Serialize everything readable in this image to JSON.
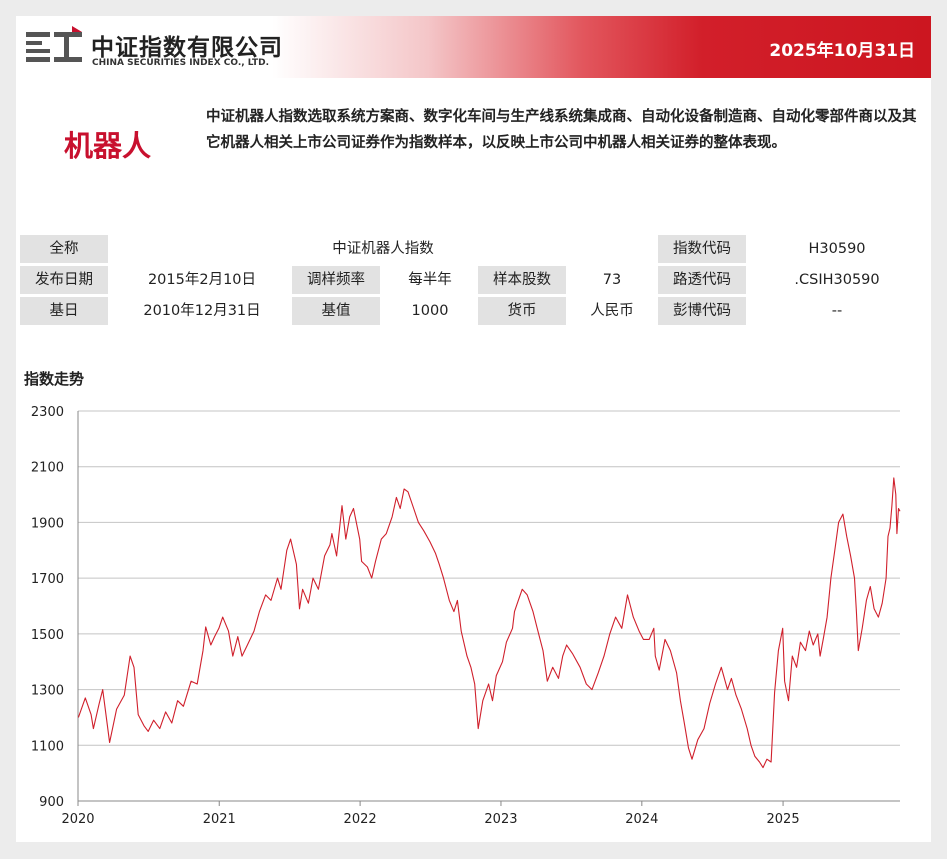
{
  "header": {
    "brand_cn": "中证指数有限公司",
    "brand_en": "CHINA SECURITIES INDEX CO., LTD.",
    "date": "2025年10月31日"
  },
  "index": {
    "name": "机器人",
    "description": "中证机器人指数选取系统方案商、数字化车间与生产线系统集成商、自动化设备制造商、自动化零部件商以及其它机器人相关上市公司证券作为指数样本，以反映上市公司中机器人相关证券的整体表现。"
  },
  "info": {
    "full_name_label": "全称",
    "full_name": "中证机器人指数",
    "code_label": "指数代码",
    "code": "H30590",
    "launch_label": "发布日期",
    "launch": "2015年2月10日",
    "rebalance_label": "调样频率",
    "rebalance": "每半年",
    "count_label": "样本股数",
    "count": "73",
    "reuters_label": "路透代码",
    "reuters": ".CSIH30590",
    "base_date_label": "基日",
    "base_date": "2010年12月31日",
    "base_value_label": "基值",
    "base_value": "1000",
    "currency_label": "货币",
    "currency": "人民币",
    "bloomberg_label": "彭博代码",
    "bloomberg": "--"
  },
  "section_title": "指数走势",
  "chart_data": {
    "type": "line",
    "title": "指数走势",
    "xlabel": "",
    "ylabel": "",
    "ylim": [
      900,
      2300
    ],
    "yticks": [
      900,
      1100,
      1300,
      1500,
      1700,
      1900,
      2100,
      2300
    ],
    "xticks": [
      "2020",
      "2021",
      "2022",
      "2023",
      "2024",
      "2025"
    ],
    "xlim": [
      "2020-01-01",
      "2025-10-31"
    ],
    "grid": true,
    "line_color": "#d0202c",
    "series": [
      {
        "name": "",
        "points": [
          [
            "2020-01-02",
            1200
          ],
          [
            "2020-01-20",
            1270
          ],
          [
            "2020-02-04",
            1210
          ],
          [
            "2020-02-10",
            1160
          ],
          [
            "2020-02-25",
            1250
          ],
          [
            "2020-03-05",
            1300
          ],
          [
            "2020-03-23",
            1110
          ],
          [
            "2020-04-10",
            1230
          ],
          [
            "2020-04-30",
            1280
          ],
          [
            "2020-05-15",
            1420
          ],
          [
            "2020-05-25",
            1380
          ],
          [
            "2020-06-05",
            1210
          ],
          [
            "2020-06-20",
            1170
          ],
          [
            "2020-07-01",
            1150
          ],
          [
            "2020-07-15",
            1190
          ],
          [
            "2020-07-31",
            1160
          ],
          [
            "2020-08-15",
            1220
          ],
          [
            "2020-08-31",
            1180
          ],
          [
            "2020-09-15",
            1260
          ],
          [
            "2020-09-30",
            1240
          ],
          [
            "2020-10-20",
            1330
          ],
          [
            "2020-11-05",
            1320
          ],
          [
            "2020-11-20",
            1440
          ],
          [
            "2020-11-27",
            1525
          ],
          [
            "2020-12-10",
            1460
          ],
          [
            "2020-12-20",
            1490
          ],
          [
            "2020-12-31",
            1520
          ],
          [
            "2021-01-10",
            1560
          ],
          [
            "2021-01-25",
            1510
          ],
          [
            "2021-02-05",
            1420
          ],
          [
            "2021-02-18",
            1490
          ],
          [
            "2021-03-01",
            1420
          ],
          [
            "2021-03-15",
            1460
          ],
          [
            "2021-04-01",
            1510
          ],
          [
            "2021-04-15",
            1580
          ],
          [
            "2021-05-01",
            1640
          ],
          [
            "2021-05-15",
            1620
          ],
          [
            "2021-06-01",
            1700
          ],
          [
            "2021-06-10",
            1660
          ],
          [
            "2021-06-25",
            1800
          ],
          [
            "2021-07-05",
            1840
          ],
          [
            "2021-07-20",
            1750
          ],
          [
            "2021-07-28",
            1590
          ],
          [
            "2021-08-05",
            1660
          ],
          [
            "2021-08-20",
            1610
          ],
          [
            "2021-09-01",
            1700
          ],
          [
            "2021-09-15",
            1660
          ],
          [
            "2021-10-01",
            1780
          ],
          [
            "2021-10-15",
            1820
          ],
          [
            "2021-10-20",
            1860
          ],
          [
            "2021-11-01",
            1780
          ],
          [
            "2021-11-15",
            1960
          ],
          [
            "2021-11-25",
            1840
          ],
          [
            "2021-12-05",
            1920
          ],
          [
            "2021-12-15",
            1950
          ],
          [
            "2021-12-31",
            1840
          ],
          [
            "2022-01-05",
            1760
          ],
          [
            "2022-01-20",
            1740
          ],
          [
            "2022-01-31",
            1700
          ],
          [
            "2022-02-10",
            1760
          ],
          [
            "2022-02-25",
            1840
          ],
          [
            "2022-03-10",
            1860
          ],
          [
            "2022-03-25",
            1920
          ],
          [
            "2022-04-05",
            1990
          ],
          [
            "2022-04-15",
            1950
          ],
          [
            "2022-04-25",
            2020
          ],
          [
            "2022-05-05",
            2010
          ],
          [
            "2022-05-20",
            1950
          ],
          [
            "2022-06-01",
            1900
          ],
          [
            "2022-06-15",
            1870
          ],
          [
            "2022-07-01",
            1830
          ],
          [
            "2022-07-15",
            1790
          ],
          [
            "2022-07-25",
            1750
          ],
          [
            "2022-08-05",
            1700
          ],
          [
            "2022-08-20",
            1620
          ],
          [
            "2022-09-01",
            1580
          ],
          [
            "2022-09-10",
            1620
          ],
          [
            "2022-09-20",
            1510
          ],
          [
            "2022-10-05",
            1420
          ],
          [
            "2022-10-15",
            1380
          ],
          [
            "2022-10-25",
            1320
          ],
          [
            "2022-11-03",
            1160
          ],
          [
            "2022-11-15",
            1260
          ],
          [
            "2022-11-30",
            1320
          ],
          [
            "2022-12-10",
            1260
          ],
          [
            "2022-12-20",
            1350
          ],
          [
            "2023-01-05",
            1400
          ],
          [
            "2023-01-15",
            1470
          ],
          [
            "2023-01-31",
            1520
          ],
          [
            "2023-02-05",
            1580
          ],
          [
            "2023-02-15",
            1620
          ],
          [
            "2023-02-25",
            1660
          ],
          [
            "2023-03-10",
            1640
          ],
          [
            "2023-03-25",
            1580
          ],
          [
            "2023-04-05",
            1520
          ],
          [
            "2023-04-20",
            1440
          ],
          [
            "2023-05-01",
            1330
          ],
          [
            "2023-05-15",
            1380
          ],
          [
            "2023-05-30",
            1340
          ],
          [
            "2023-06-10",
            1420
          ],
          [
            "2023-06-20",
            1460
          ],
          [
            "2023-07-05",
            1430
          ],
          [
            "2023-07-25",
            1380
          ],
          [
            "2023-08-10",
            1320
          ],
          [
            "2023-08-25",
            1300
          ],
          [
            "2023-09-10",
            1360
          ],
          [
            "2023-09-25",
            1420
          ],
          [
            "2023-10-10",
            1500
          ],
          [
            "2023-10-25",
            1560
          ],
          [
            "2023-11-10",
            1520
          ],
          [
            "2023-11-20",
            1600
          ],
          [
            "2023-11-25",
            1640
          ],
          [
            "2023-12-10",
            1560
          ],
          [
            "2023-12-25",
            1510
          ],
          [
            "2024-01-05",
            1480
          ],
          [
            "2024-01-20",
            1480
          ],
          [
            "2024-02-01",
            1520
          ],
          [
            "2024-02-05",
            1420
          ],
          [
            "2024-02-15",
            1370
          ],
          [
            "2024-03-01",
            1480
          ],
          [
            "2024-03-15",
            1440
          ],
          [
            "2024-03-31",
            1360
          ],
          [
            "2024-04-10",
            1260
          ],
          [
            "2024-04-20",
            1180
          ],
          [
            "2024-05-01",
            1090
          ],
          [
            "2024-05-10",
            1050
          ],
          [
            "2024-05-25",
            1120
          ],
          [
            "2024-06-10",
            1160
          ],
          [
            "2024-06-25",
            1250
          ],
          [
            "2024-07-10",
            1320
          ],
          [
            "2024-07-25",
            1380
          ],
          [
            "2024-08-10",
            1300
          ],
          [
            "2024-08-20",
            1340
          ],
          [
            "2024-09-01",
            1280
          ],
          [
            "2024-09-15",
            1230
          ],
          [
            "2024-09-30",
            1160
          ],
          [
            "2024-10-10",
            1100
          ],
          [
            "2024-10-20",
            1060
          ],
          [
            "2024-11-01",
            1040
          ],
          [
            "2024-11-10",
            1020
          ],
          [
            "2024-11-20",
            1050
          ],
          [
            "2024-12-01",
            1040
          ],
          [
            "2024-12-10",
            1290
          ],
          [
            "2024-12-20",
            1440
          ],
          [
            "2024-12-31",
            1520
          ],
          [
            "2025-01-05",
            1330
          ],
          [
            "2025-01-15",
            1260
          ],
          [
            "2025-01-25",
            1420
          ],
          [
            "2025-02-05",
            1380
          ],
          [
            "2025-02-15",
            1470
          ],
          [
            "2025-02-28",
            1440
          ],
          [
            "2025-03-10",
            1510
          ],
          [
            "2025-03-20",
            1460
          ],
          [
            "2025-04-01",
            1500
          ],
          [
            "2025-04-07",
            1420
          ],
          [
            "2025-04-15",
            1480
          ],
          [
            "2025-04-25",
            1560
          ],
          [
            "2025-05-05",
            1700
          ],
          [
            "2025-05-15",
            1800
          ],
          [
            "2025-05-25",
            1900
          ],
          [
            "2025-06-05",
            1930
          ],
          [
            "2025-06-15",
            1850
          ],
          [
            "2025-06-25",
            1780
          ],
          [
            "2025-07-05",
            1700
          ],
          [
            "2025-07-10",
            1580
          ],
          [
            "2025-07-15",
            1440
          ],
          [
            "2025-07-25",
            1520
          ],
          [
            "2025-08-05",
            1620
          ],
          [
            "2025-08-15",
            1670
          ],
          [
            "2025-08-25",
            1590
          ],
          [
            "2025-09-05",
            1560
          ],
          [
            "2025-09-15",
            1610
          ],
          [
            "2025-09-25",
            1700
          ],
          [
            "2025-09-30",
            1850
          ],
          [
            "2025-10-05",
            1880
          ],
          [
            "2025-10-10",
            1960
          ],
          [
            "2025-10-15",
            2060
          ],
          [
            "2025-10-20",
            2000
          ],
          [
            "2025-10-23",
            1860
          ],
          [
            "2025-10-27",
            1950
          ],
          [
            "2025-10-31",
            1940
          ]
        ]
      }
    ]
  }
}
